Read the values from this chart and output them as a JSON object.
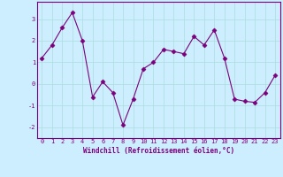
{
  "x": [
    0,
    1,
    2,
    3,
    4,
    5,
    6,
    7,
    8,
    9,
    10,
    11,
    12,
    13,
    14,
    15,
    16,
    17,
    18,
    19,
    20,
    21,
    22,
    23
  ],
  "y": [
    1.2,
    1.8,
    2.6,
    3.3,
    2.0,
    -0.6,
    0.1,
    -0.4,
    -1.9,
    -0.7,
    0.7,
    1.0,
    1.6,
    1.5,
    1.4,
    2.2,
    1.8,
    2.5,
    1.2,
    -0.7,
    -0.8,
    -0.85,
    -0.4,
    0.4
  ],
  "xlabel": "Windchill (Refroidissement éolien,°C)",
  "ylim": [
    -2.5,
    3.8
  ],
  "xlim": [
    -0.5,
    23.5
  ],
  "yticks": [
    -2,
    -1,
    0,
    1,
    2,
    3
  ],
  "xticks": [
    0,
    1,
    2,
    3,
    4,
    5,
    6,
    7,
    8,
    9,
    10,
    11,
    12,
    13,
    14,
    15,
    16,
    17,
    18,
    19,
    20,
    21,
    22,
    23
  ],
  "line_color": "#7B007B",
  "marker": "D",
  "marker_size": 2.5,
  "bg_color": "#CCEEFF",
  "grid_color": "#AADDDD",
  "font_color": "#7B007B",
  "font_family": "monospace",
  "tick_fontsize": 5.0,
  "xlabel_fontsize": 5.5
}
